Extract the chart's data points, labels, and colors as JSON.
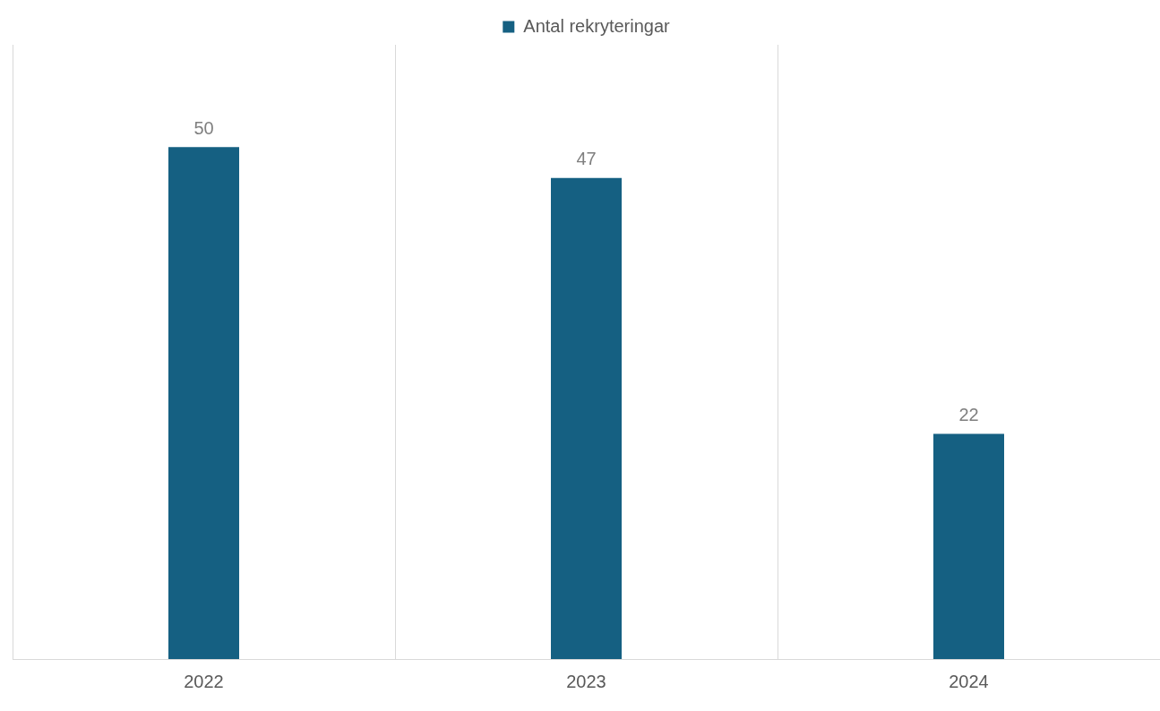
{
  "chart_data": {
    "type": "bar",
    "categories": [
      "2022",
      "2023",
      "2024"
    ],
    "series": [
      {
        "name": "Antal rekryteringar",
        "color": "#156082",
        "values": [
          50,
          47,
          22
        ]
      }
    ],
    "data_labels": true,
    "grid": "x",
    "legend": "top"
  }
}
